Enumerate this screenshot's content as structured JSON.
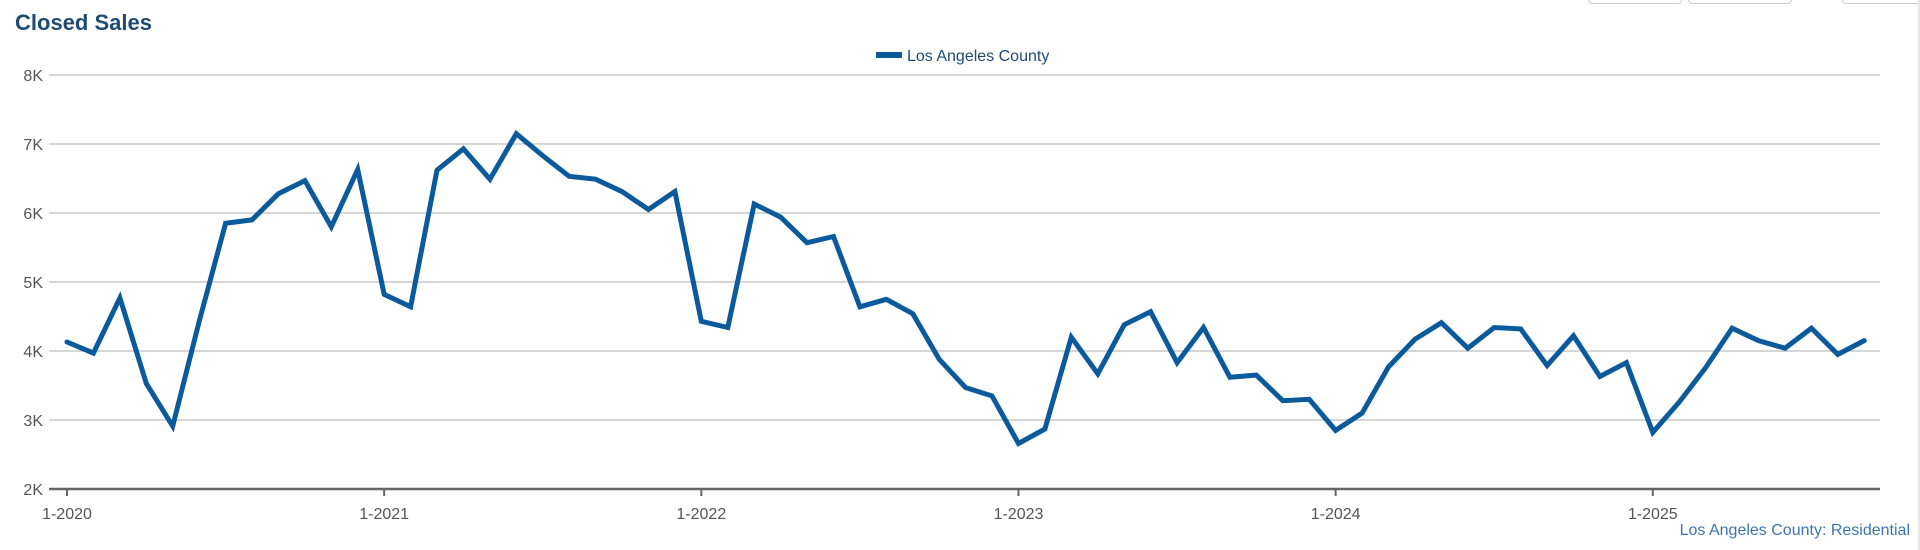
{
  "chart_data": {
    "type": "line",
    "title": "Closed Sales",
    "xlabel": "",
    "ylabel": "",
    "legend_position": "top-center",
    "grid": true,
    "ylim": [
      2000,
      8000
    ],
    "y_ticks": [
      "2K",
      "3K",
      "4K",
      "5K",
      "6K",
      "7K",
      "8K"
    ],
    "y_tick_values": [
      2000,
      3000,
      4000,
      5000,
      6000,
      7000,
      8000
    ],
    "x_ticks": [
      "1-2020",
      "1-2021",
      "1-2022",
      "1-2023",
      "1-2024",
      "1-2025"
    ],
    "x_start": "2020-01",
    "x_end": "2025-09",
    "series": [
      {
        "name": "Los Angeles County",
        "color": "#0a5a9c",
        "values": [
          4130,
          3970,
          4770,
          3530,
          2910,
          4430,
          5850,
          5900,
          6280,
          6470,
          5800,
          6630,
          4820,
          4640,
          6620,
          6930,
          6490,
          7150,
          6830,
          6530,
          6490,
          6310,
          6050,
          6310,
          4430,
          4340,
          6130,
          5940,
          5570,
          5660,
          4640,
          4750,
          4540,
          3880,
          3470,
          3350,
          2660,
          2870,
          4200,
          3670,
          4380,
          4570,
          3830,
          4340,
          3620,
          3650,
          3280,
          3300,
          2850,
          3100,
          3770,
          4170,
          4410,
          4040,
          4340,
          4320,
          3790,
          4220,
          3630,
          3830,
          2820,
          3260,
          3760,
          4330,
          4150,
          4040,
          4330,
          3950,
          4150
        ]
      }
    ],
    "source_note": "Los Angeles County: Residential"
  }
}
